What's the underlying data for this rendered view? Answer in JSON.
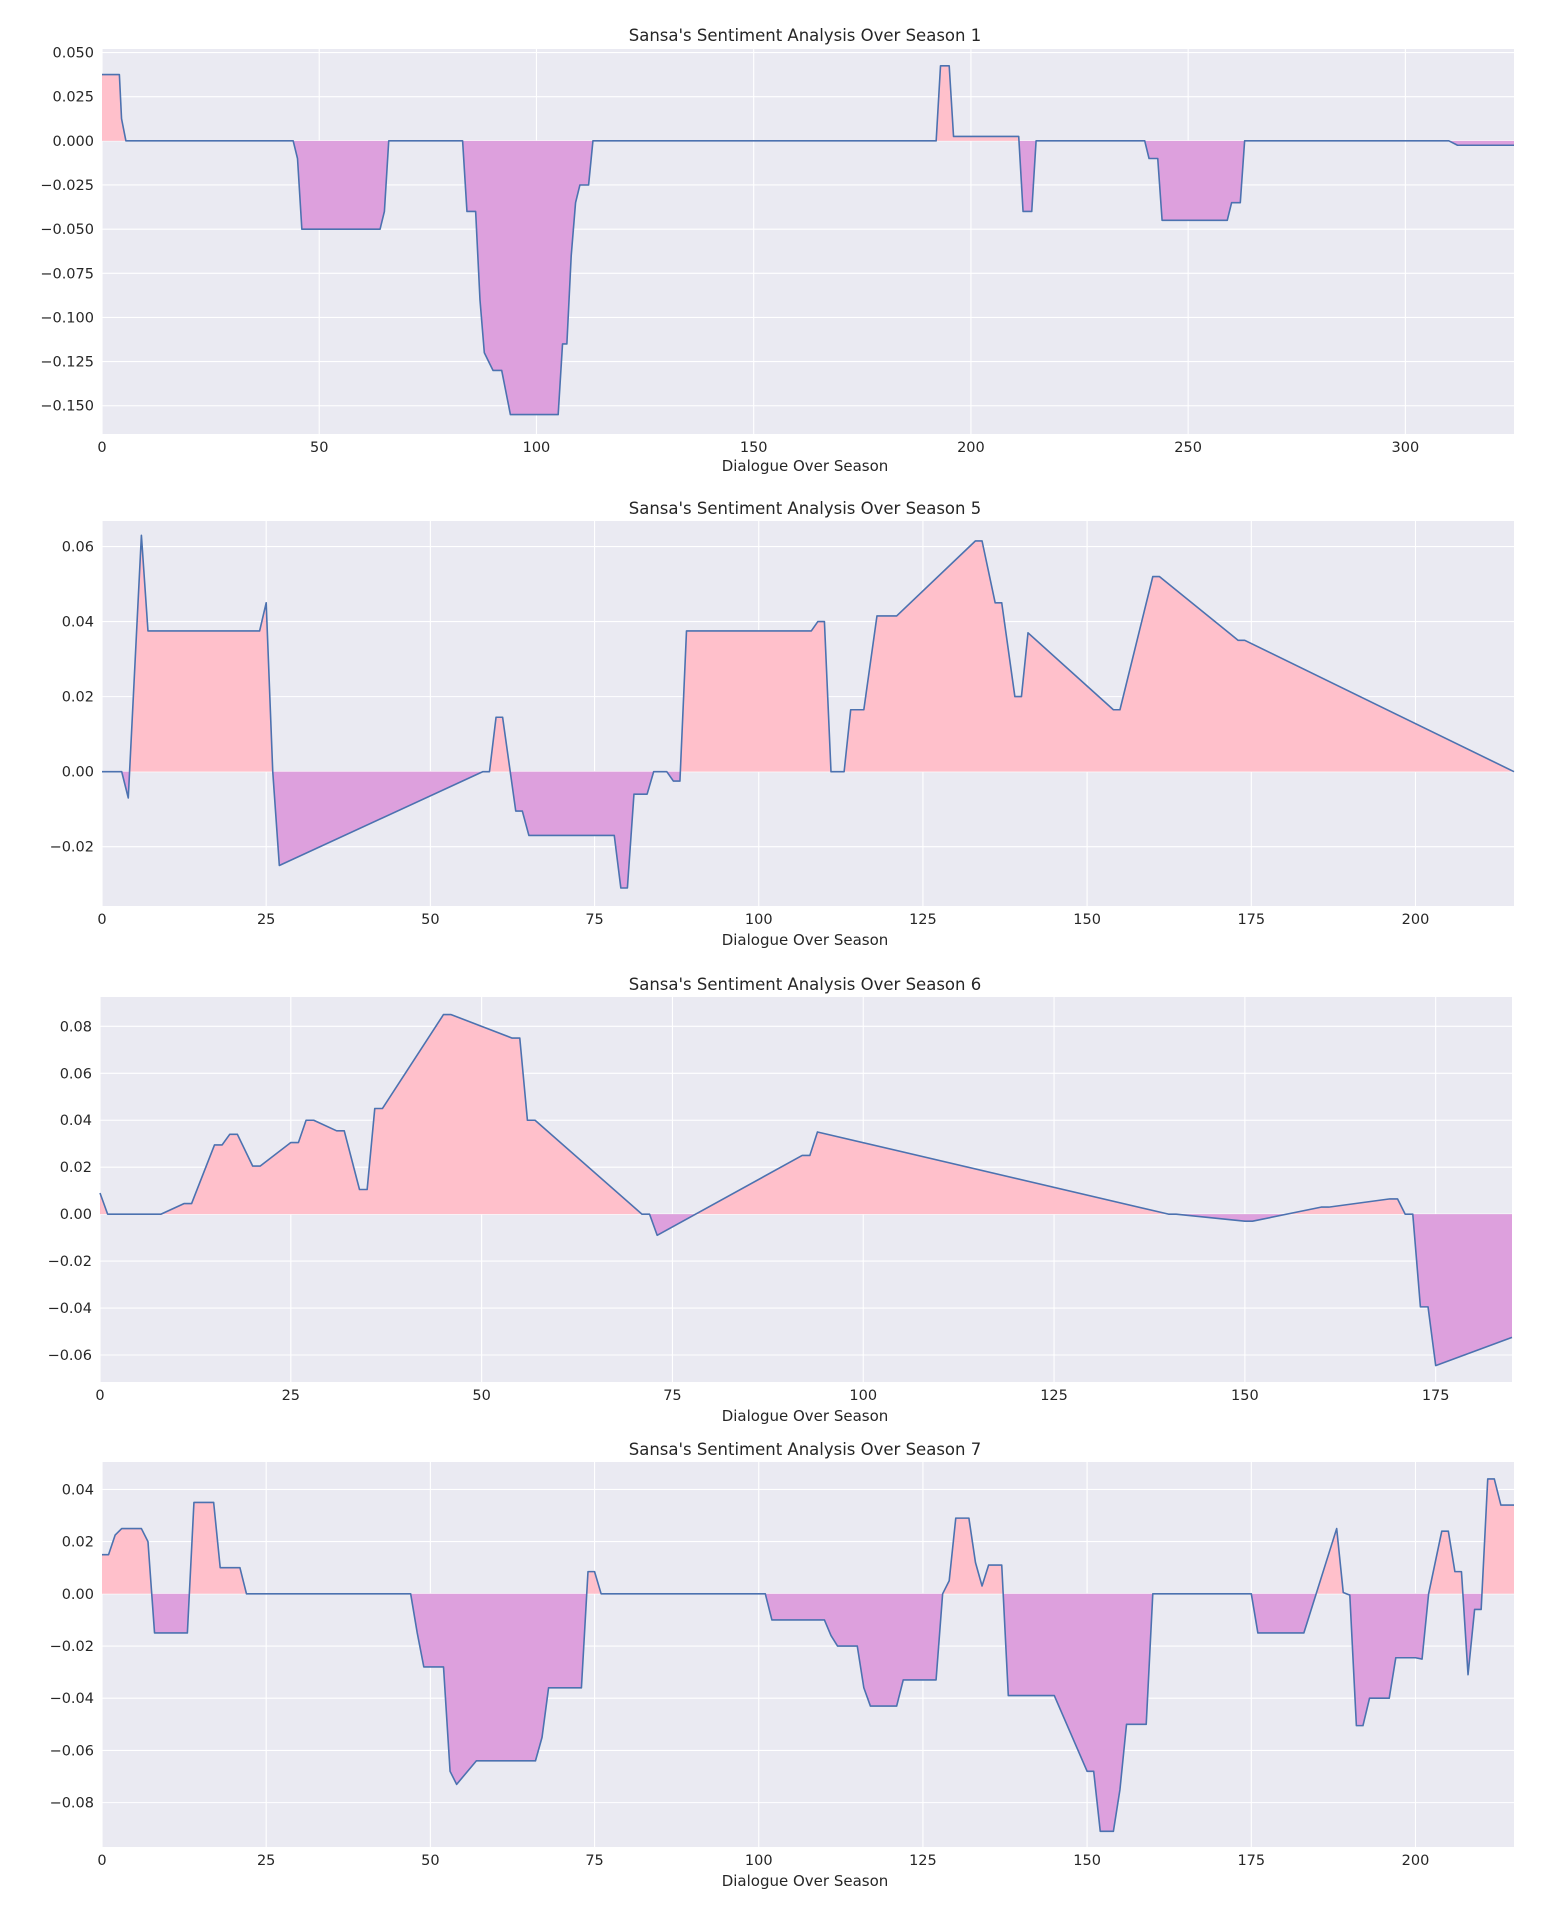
{
  "colors": {
    "background": "#eaeaf2",
    "line": "#4c72b0",
    "positive_fill": "#ffc0cb",
    "negative_fill": "#dda0dd",
    "grid": "#ffffff"
  },
  "chart_data": [
    {
      "type": "area",
      "title": "Sansa's Sentiment Analysis Over Season 1",
      "xlabel": "Dialogue Over Season",
      "ylabel": "",
      "xlim": [
        0,
        325
      ],
      "ylim": [
        -0.166,
        0.052
      ],
      "xticks": [
        0,
        50,
        100,
        150,
        200,
        250,
        300
      ],
      "xtick_labels": [
        "0",
        "50",
        "100",
        "150",
        "200",
        "250",
        "300"
      ],
      "yticks": [
        0.05,
        0.025,
        0.0,
        -0.025,
        -0.05,
        -0.075,
        -0.1,
        -0.125,
        -0.15
      ],
      "ytick_labels": [
        "0.050",
        "0.025",
        "0.000",
        "−0.025",
        "−0.050",
        "−0.075",
        "−0.100",
        "−0.125",
        "−0.150"
      ],
      "grid": true,
      "x": [
        0,
        4,
        4.5,
        5.5,
        44,
        45,
        46,
        64,
        65,
        66,
        83,
        84,
        86,
        87,
        88,
        89,
        90,
        92,
        94,
        97,
        105,
        106,
        107,
        108,
        109,
        110,
        112,
        113,
        192,
        193,
        195,
        196,
        200,
        211,
        212,
        214,
        215,
        240,
        241,
        243,
        244,
        259,
        260,
        262,
        263,
        310,
        312,
        325
      ],
      "y": [
        0.0375,
        0.0375,
        0.0125,
        0.0,
        0.0,
        -0.01,
        -0.05,
        -0.05,
        -0.04,
        0.0,
        0.0,
        -0.04,
        -0.04,
        -0.09,
        -0.12,
        -0.125,
        -0.13,
        -0.13,
        -0.155,
        -0.155,
        -0.155,
        -0.115,
        -0.115,
        -0.065,
        -0.035,
        -0.025,
        -0.025,
        0.0,
        0.0,
        0.0425,
        0.0425,
        0.0025,
        0.0025,
        0.0025,
        -0.04,
        -0.04,
        0.0,
        0.0,
        -0.01,
        -0.01,
        -0.045,
        -0.045,
        -0.035,
        -0.035,
        0.0,
        0.0,
        -0.0025,
        -0.0025
      ]
    },
    {
      "type": "area",
      "title": "Sansa's Sentiment Analysis Over Season 5",
      "xlabel": "Dialogue Over Season",
      "ylabel": "",
      "xlim": [
        0,
        215
      ],
      "ylim": [
        -0.0358,
        0.0668
      ],
      "xticks": [
        0,
        25,
        50,
        75,
        100,
        125,
        150,
        175,
        200
      ],
      "xtick_labels": [
        "0",
        "25",
        "50",
        "75",
        "100",
        "125",
        "150",
        "175",
        "200"
      ],
      "yticks": [
        0.06,
        0.04,
        0.02,
        0.0,
        -0.02
      ],
      "ytick_labels": [
        "0.06",
        "0.04",
        "0.02",
        "0.00",
        "−0.02"
      ],
      "grid": true,
      "x": [
        0,
        3,
        4,
        6,
        7,
        23,
        24,
        25,
        26,
        27,
        58,
        59,
        60,
        61,
        63,
        64,
        65,
        78,
        79,
        80,
        81,
        83,
        84,
        86,
        87,
        88,
        89,
        90,
        108,
        109,
        110,
        111,
        113,
        114,
        116,
        118,
        121,
        133,
        134,
        136,
        137,
        139,
        140,
        141,
        154,
        155,
        160,
        161,
        173,
        174,
        215
      ],
      "y": [
        0.0,
        0.0,
        -0.007,
        0.063,
        0.0375,
        0.0375,
        0.0375,
        0.045,
        0.0,
        -0.025,
        0.0,
        0.0,
        0.0145,
        0.0145,
        -0.0105,
        -0.0105,
        -0.017,
        -0.017,
        -0.031,
        -0.031,
        -0.006,
        -0.006,
        0.0,
        0.0,
        -0.0025,
        -0.0025,
        0.0375,
        0.0375,
        0.0375,
        0.04,
        0.04,
        0.0,
        0.0,
        0.0165,
        0.0165,
        0.0415,
        0.0415,
        0.0615,
        0.0615,
        0.045,
        0.045,
        0.02,
        0.02,
        0.037,
        0.0165,
        0.0165,
        0.052,
        0.052,
        0.035,
        0.035,
        0.0
      ]
    },
    {
      "type": "area",
      "title": "Sansa's Sentiment Analysis Over Season 6",
      "xlabel": "Dialogue Over Season",
      "ylabel": "",
      "xlim": [
        0,
        185
      ],
      "ylim": [
        -0.0715,
        0.0925
      ],
      "xticks": [
        0,
        25,
        50,
        75,
        100,
        125,
        150,
        175
      ],
      "xtick_labels": [
        "0",
        "25",
        "50",
        "75",
        "100",
        "125",
        "150",
        "175"
      ],
      "yticks": [
        0.08,
        0.06,
        0.04,
        0.02,
        0.0,
        -0.02,
        -0.04,
        -0.06
      ],
      "ytick_labels": [
        "0.08",
        "0.06",
        "0.04",
        "0.02",
        "0.00",
        "−0.02",
        "−0.04",
        "−0.06"
      ],
      "grid": true,
      "x": [
        0,
        1,
        7,
        8,
        11,
        12,
        15,
        16,
        17,
        18,
        20,
        21,
        25,
        26,
        27,
        28,
        31,
        32,
        34,
        35,
        36,
        37,
        45,
        46,
        54,
        55,
        56,
        57,
        71,
        72,
        73,
        92,
        93,
        94,
        140,
        141,
        150,
        151,
        160,
        161,
        169,
        170,
        171,
        172,
        173,
        174,
        175,
        185
      ],
      "y": [
        0.009,
        0.0,
        0.0,
        0.0,
        0.0045,
        0.0045,
        0.0295,
        0.0295,
        0.034,
        0.034,
        0.0205,
        0.0205,
        0.0305,
        0.0305,
        0.04,
        0.04,
        0.0355,
        0.0355,
        0.0105,
        0.0105,
        0.045,
        0.045,
        0.085,
        0.085,
        0.075,
        0.075,
        0.04,
        0.04,
        0.0,
        0.0,
        -0.009,
        0.025,
        0.025,
        0.035,
        0.0,
        0.0,
        -0.003,
        -0.003,
        0.003,
        0.003,
        0.0065,
        0.0065,
        0.0,
        0.0,
        -0.0395,
        -0.0395,
        -0.0645,
        -0.0525
      ]
    },
    {
      "type": "area",
      "title": "Sansa's Sentiment Analysis Over Season 7",
      "xlabel": "Dialogue Over Season",
      "ylabel": "",
      "xlim": [
        0,
        215
      ],
      "ylim": [
        -0.097,
        0.0505
      ],
      "xticks": [
        0,
        25,
        50,
        75,
        100,
        125,
        150,
        175,
        200
      ],
      "xtick_labels": [
        "0",
        "25",
        "50",
        "75",
        "100",
        "125",
        "150",
        "175",
        "200"
      ],
      "yticks": [
        0.04,
        0.02,
        0.0,
        -0.02,
        -0.04,
        -0.06,
        -0.08
      ],
      "ytick_labels": [
        "0.04",
        "0.02",
        "0.00",
        "−0.02",
        "−0.04",
        "−0.06",
        "−0.08"
      ],
      "grid": true,
      "x": [
        0,
        1,
        2,
        3,
        6,
        7,
        8,
        13,
        14,
        17,
        18,
        21,
        22,
        47,
        48,
        49,
        51,
        52,
        53,
        54,
        57,
        58,
        66,
        67,
        68,
        73,
        74,
        75,
        76,
        101,
        102,
        110,
        111,
        112,
        115,
        116,
        117,
        121,
        122,
        127,
        128,
        129,
        130,
        132,
        133,
        134,
        135,
        137,
        138,
        141,
        142,
        145,
        150,
        151,
        152,
        154,
        155,
        156,
        159,
        160,
        161,
        175,
        176,
        182,
        183,
        188,
        189,
        190,
        191,
        192,
        193,
        196,
        197,
        200,
        201,
        202,
        204,
        205,
        206,
        207,
        208,
        209,
        210,
        211,
        212,
        213,
        215
      ],
      "y": [
        0.015,
        0.015,
        0.0225,
        0.025,
        0.025,
        0.02,
        -0.015,
        -0.015,
        0.035,
        0.035,
        0.01,
        0.01,
        0.0,
        0.0,
        -0.015,
        -0.028,
        -0.028,
        -0.028,
        -0.068,
        -0.073,
        -0.064,
        -0.064,
        -0.064,
        -0.055,
        -0.036,
        -0.036,
        0.0085,
        0.0085,
        0.0,
        0.0,
        -0.01,
        -0.01,
        -0.016,
        -0.02,
        -0.02,
        -0.036,
        -0.043,
        -0.043,
        -0.033,
        -0.033,
        0.0,
        0.005,
        0.029,
        0.029,
        0.012,
        0.003,
        0.011,
        0.011,
        -0.039,
        -0.039,
        -0.039,
        -0.039,
        -0.068,
        -0.068,
        -0.091,
        -0.091,
        -0.075,
        -0.05,
        -0.05,
        0.0,
        0.0,
        0.0,
        -0.015,
        -0.015,
        -0.015,
        0.025,
        0.0005,
        -0.0005,
        -0.0505,
        -0.0505,
        -0.04,
        -0.04,
        -0.0245,
        -0.0245,
        -0.025,
        0.0,
        0.024,
        0.024,
        0.0085,
        0.0085,
        -0.031,
        -0.006,
        -0.006,
        0.044,
        0.044,
        0.034,
        0.034
      ]
    }
  ]
}
